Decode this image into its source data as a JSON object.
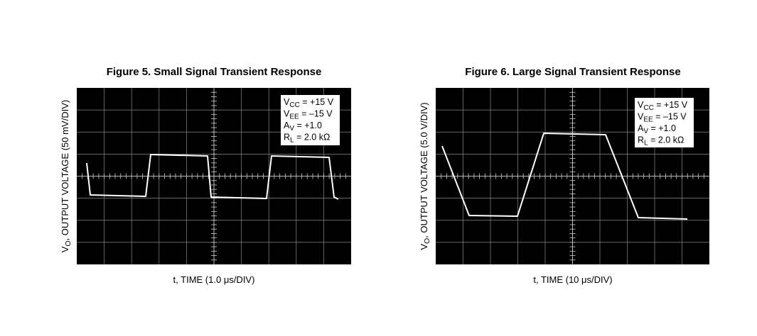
{
  "figures": [
    {
      "title": "Figure 5. Small Signal Transient Response",
      "y_label": {
        "symbol": "V",
        "sub": "O",
        "text": ", OUTPUT VOLTAGE (50 mV/DIV)"
      },
      "x_label": "t, TIME (1.0 μs/DIV)",
      "conditions": [
        {
          "symbol": "V",
          "sub": "CC",
          "text": " = +15 V"
        },
        {
          "symbol": "V",
          "sub": "EE",
          "text": " = –15 V"
        },
        {
          "symbol": "A",
          "sub": "V",
          "text": " = +1.0"
        },
        {
          "symbol": "R",
          "sub": "L",
          "text": " = 2.0 kΩ"
        }
      ]
    },
    {
      "title": "Figure 6. Large Signal Transient Response",
      "y_label": {
        "symbol": "V",
        "sub": "O",
        "text": ", OUTPUT VOLTAGE (5.0 V/DIV)"
      },
      "x_label": "t, TIME (10 μs/DIV)",
      "conditions": [
        {
          "symbol": "V",
          "sub": "CC",
          "text": " = +15 V"
        },
        {
          "symbol": "V",
          "sub": "EE",
          "text": " = –15 V"
        },
        {
          "symbol": "A",
          "sub": "V",
          "text": " = +1.0"
        },
        {
          "symbol": "R",
          "sub": "L",
          "text": " = 2.0 kΩ"
        }
      ]
    }
  ]
}
